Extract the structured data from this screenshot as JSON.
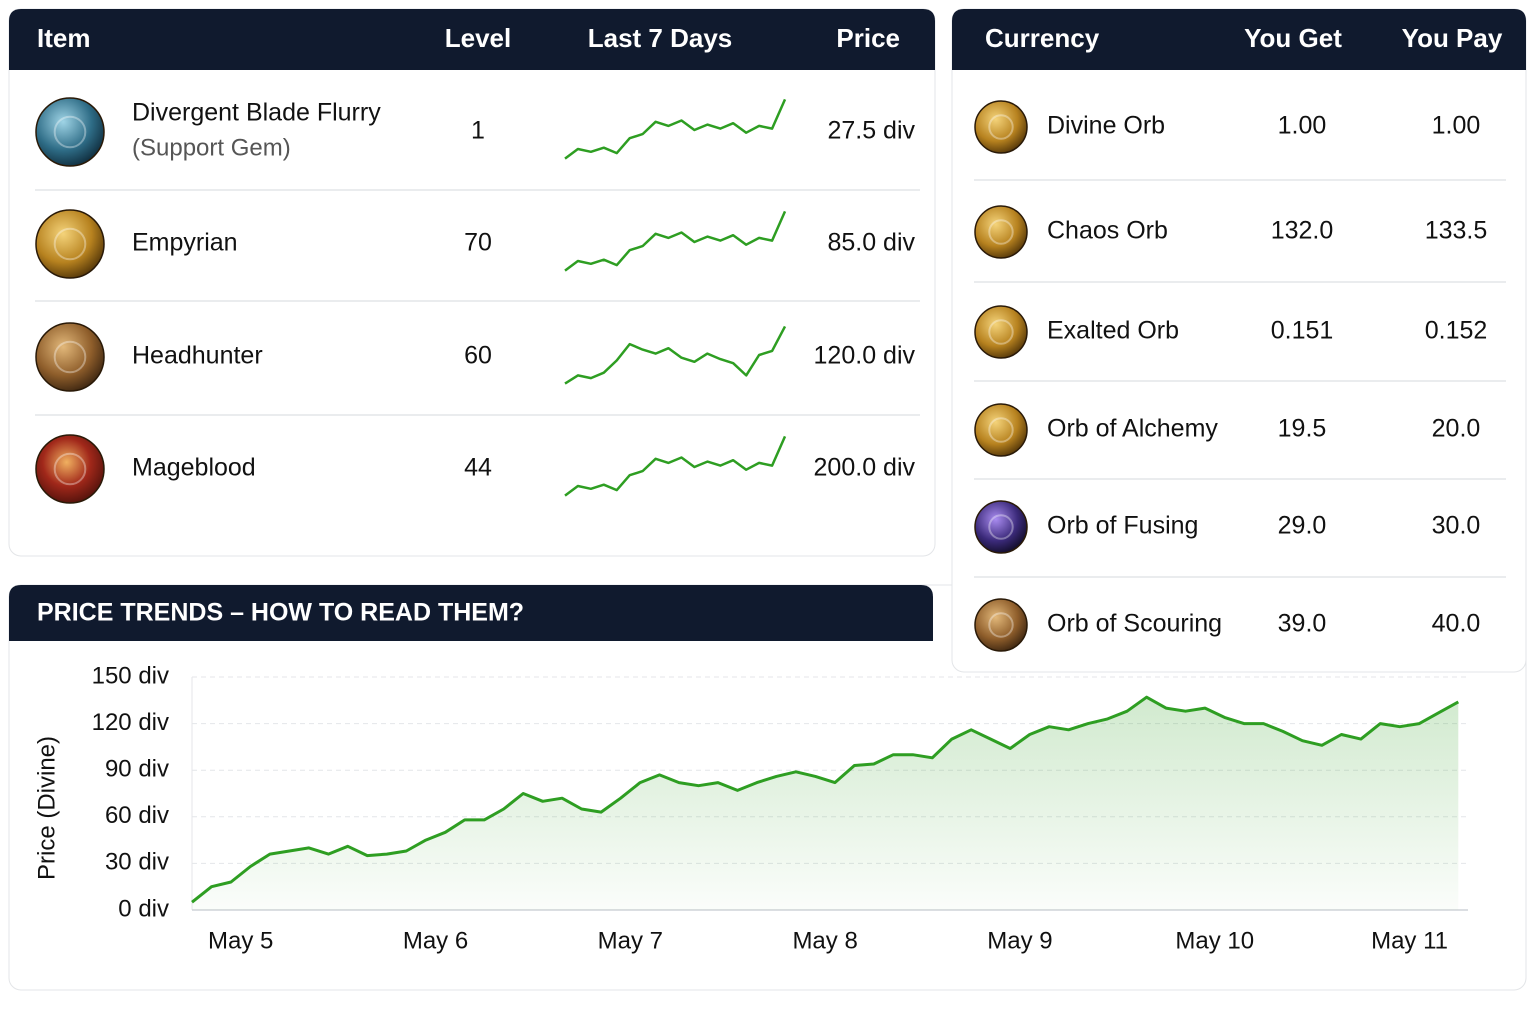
{
  "items_table": {
    "headers": [
      "Item",
      "Level",
      "Last 7 Days",
      "Price"
    ],
    "trend_ylim": [
      0,
      100
    ],
    "rows": [
      {
        "name": "Divergent Blade Flurry",
        "subtitle": "(Support Gem)",
        "level": "1",
        "price": "27.5 div",
        "trend": [
          8,
          22,
          18,
          24,
          16,
          38,
          44,
          62,
          56,
          64,
          50,
          58,
          52,
          60,
          46,
          56,
          52,
          95
        ]
      },
      {
        "name": "Empyrian",
        "level": "70",
        "price": "85.0 div",
        "trend": [
          8,
          22,
          18,
          24,
          16,
          38,
          44,
          62,
          56,
          64,
          50,
          58,
          52,
          60,
          46,
          56,
          52,
          95
        ]
      },
      {
        "name": "Headhunter",
        "level": "60",
        "price": "120.0 div",
        "trend": [
          8,
          20,
          16,
          24,
          42,
          66,
          58,
          52,
          60,
          46,
          40,
          52,
          44,
          38,
          20,
          50,
          56,
          92
        ]
      },
      {
        "name": "Mageblood",
        "level": "44",
        "price": "200.0 div",
        "trend": [
          8,
          22,
          18,
          24,
          16,
          38,
          44,
          62,
          56,
          64,
          50,
          58,
          52,
          60,
          46,
          56,
          52,
          95
        ]
      }
    ]
  },
  "currency_table": {
    "headers": [
      "Currency",
      "You Get",
      "You Pay"
    ],
    "rows": [
      {
        "name": "Divine Orb",
        "get": "1.00",
        "pay": "1.00"
      },
      {
        "name": "Chaos Orb",
        "get": "132.0",
        "pay": "133.5"
      },
      {
        "name": "Exalted Orb",
        "get": "0.151",
        "pay": "0.152"
      },
      {
        "name": "Orb of Alchemy",
        "get": "19.5",
        "pay": "20.0"
      },
      {
        "name": "Orb of Fusing",
        "get": "29.0",
        "pay": "30.0"
      },
      {
        "name": "Orb of Scouring",
        "get": "39.0",
        "pay": "40.0"
      }
    ]
  },
  "chart_data": {
    "type": "line",
    "title": "PRICE TRENDS – HOW TO READ THEM?",
    "ylabel": "Price (Divine)",
    "color": "#2e9e22",
    "grid": true,
    "values": [
      5,
      15,
      18,
      28,
      36,
      38,
      40,
      36,
      41,
      35,
      36,
      38,
      45,
      50,
      58,
      58,
      65,
      75,
      70,
      72,
      65,
      63,
      72,
      82,
      87,
      82,
      80,
      82,
      77,
      82,
      86,
      89,
      86,
      82,
      93,
      94,
      100,
      100,
      98,
      110,
      116,
      110,
      104,
      113,
      118,
      116,
      120,
      123,
      128,
      137,
      130,
      128,
      130,
      124,
      120,
      120,
      115,
      109,
      106,
      113,
      110,
      120,
      118,
      120,
      127,
      134
    ],
    "xlim": [
      0,
      65.5
    ],
    "xticks": [
      {
        "value": 2.5,
        "label": "May 5"
      },
      {
        "value": 12.5,
        "label": "May 6"
      },
      {
        "value": 22.5,
        "label": "May 7"
      },
      {
        "value": 32.5,
        "label": "May 8"
      },
      {
        "value": 42.5,
        "label": "May 9"
      },
      {
        "value": 52.5,
        "label": "May 10"
      },
      {
        "value": 62.5,
        "label": "May 11"
      }
    ],
    "ylim": [
      0,
      150
    ],
    "yticks": [
      {
        "value": 0,
        "label": "0 div"
      },
      {
        "value": 30,
        "label": "30 div"
      },
      {
        "value": 60,
        "label": "60 div"
      },
      {
        "value": 90,
        "label": "90 div"
      },
      {
        "value": 120,
        "label": "120 div"
      },
      {
        "value": 150,
        "label": "150 div"
      }
    ]
  }
}
